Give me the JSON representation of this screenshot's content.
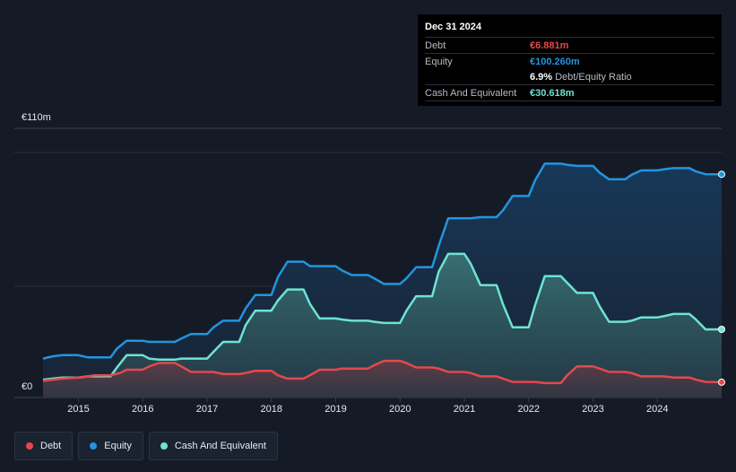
{
  "tooltip": {
    "date": "Dec 31 2024",
    "debt_label": "Debt",
    "debt_value": "€6.881m",
    "equity_label": "Equity",
    "equity_value": "€100.260m",
    "ratio_value": "6.9%",
    "ratio_label": "Debt/Equity Ratio",
    "cash_label": "Cash And Equivalent",
    "cash_value": "€30.618m"
  },
  "legend": {
    "debt": "Debt",
    "equity": "Equity",
    "cash": "Cash And Equivalent"
  },
  "colors": {
    "debt": "#e5484d",
    "equity": "#2394df",
    "cash": "#6de3d3",
    "background": "#151b26"
  },
  "chart_data": {
    "type": "area",
    "y_top_label": "€110m",
    "y_bottom_label": "€0",
    "ylim": [
      0,
      110
    ],
    "xlim": [
      2014.45,
      2025.0
    ],
    "x_tick_labels": [
      "2015",
      "2016",
      "2017",
      "2018",
      "2019",
      "2020",
      "2021",
      "2022",
      "2023",
      "2024"
    ],
    "x_ticks": [
      2015,
      2016,
      2017,
      2018,
      2019,
      2020,
      2021,
      2022,
      2023,
      2024
    ],
    "series": [
      {
        "name": "Debt",
        "key": "debt",
        "x": [
          2014.45,
          2014.6,
          2014.75,
          2015.0,
          2015.15,
          2015.25,
          2015.5,
          2015.65,
          2015.75,
          2016.0,
          2016.1,
          2016.25,
          2016.5,
          2016.6,
          2016.75,
          2017.0,
          2017.1,
          2017.25,
          2017.5,
          2017.6,
          2017.75,
          2018.0,
          2018.1,
          2018.25,
          2018.5,
          2018.6,
          2018.75,
          2019.0,
          2019.1,
          2019.25,
          2019.5,
          2019.6,
          2019.75,
          2020.0,
          2020.1,
          2020.25,
          2020.5,
          2020.6,
          2020.75,
          2021.0,
          2021.1,
          2021.25,
          2021.5,
          2021.6,
          2021.75,
          2022.0,
          2022.1,
          2022.25,
          2022.5,
          2022.6,
          2022.75,
          2023.0,
          2023.1,
          2023.25,
          2023.5,
          2023.6,
          2023.75,
          2024.0,
          2024.1,
          2024.25,
          2024.5,
          2024.6,
          2024.75,
          2025.0
        ],
        "values": [
          7.5,
          8.0,
          8.5,
          9.0,
          9.5,
          10.0,
          10.0,
          11.0,
          12.5,
          12.5,
          14.0,
          15.5,
          15.5,
          14.0,
          11.5,
          11.5,
          11.5,
          10.5,
          10.5,
          11.0,
          12.0,
          12.0,
          10.0,
          8.5,
          8.5,
          10.0,
          12.5,
          12.5,
          13.0,
          13.0,
          13.0,
          14.5,
          16.5,
          16.5,
          15.5,
          13.5,
          13.5,
          13.0,
          11.5,
          11.5,
          11.0,
          9.5,
          9.5,
          8.5,
          7.0,
          7.0,
          7.0,
          6.5,
          6.5,
          10.0,
          14.0,
          14.0,
          13.0,
          11.5,
          11.5,
          11.0,
          9.5,
          9.5,
          9.5,
          9.0,
          9.0,
          8.0,
          7.0,
          6.9
        ]
      },
      {
        "name": "Equity",
        "key": "equity",
        "x": [
          2014.45,
          2014.6,
          2014.75,
          2015.0,
          2015.15,
          2015.25,
          2015.5,
          2015.6,
          2015.75,
          2016.0,
          2016.1,
          2016.25,
          2016.5,
          2016.6,
          2016.75,
          2017.0,
          2017.1,
          2017.25,
          2017.5,
          2017.6,
          2017.75,
          2018.0,
          2018.1,
          2018.25,
          2018.5,
          2018.6,
          2018.75,
          2019.0,
          2019.1,
          2019.25,
          2019.5,
          2019.6,
          2019.75,
          2020.0,
          2020.1,
          2020.25,
          2020.5,
          2020.6,
          2020.75,
          2021.0,
          2021.1,
          2021.25,
          2021.5,
          2021.6,
          2021.75,
          2022.0,
          2022.1,
          2022.25,
          2022.5,
          2022.6,
          2022.75,
          2023.0,
          2023.1,
          2023.25,
          2023.5,
          2023.6,
          2023.75,
          2024.0,
          2024.1,
          2024.25,
          2024.5,
          2024.6,
          2024.75,
          2025.0
        ],
        "values": [
          17.5,
          18.5,
          19.0,
          19.0,
          18.0,
          18.0,
          18.0,
          22.0,
          25.5,
          25.5,
          25.0,
          25.0,
          25.0,
          26.5,
          28.5,
          28.5,
          31.5,
          34.5,
          34.5,
          40.0,
          46.0,
          46.0,
          54.0,
          61.0,
          61.0,
          59.0,
          59.0,
          59.0,
          57.0,
          55.0,
          55.0,
          53.5,
          51.0,
          51.0,
          53.5,
          58.5,
          58.5,
          68.0,
          80.5,
          80.5,
          80.5,
          81.0,
          81.0,
          84.0,
          90.5,
          90.5,
          97.5,
          105.0,
          105.0,
          104.5,
          104.0,
          104.0,
          101.0,
          98.0,
          98.0,
          100.0,
          102.0,
          102.0,
          102.5,
          103.0,
          103.0,
          101.5,
          100.3,
          100.26
        ]
      },
      {
        "name": "Cash And Equivalent",
        "key": "cash",
        "x": [
          2014.45,
          2014.6,
          2014.75,
          2015.0,
          2015.15,
          2015.25,
          2015.5,
          2015.6,
          2015.75,
          2016.0,
          2016.1,
          2016.25,
          2016.5,
          2016.6,
          2016.75,
          2017.0,
          2017.1,
          2017.25,
          2017.5,
          2017.6,
          2017.75,
          2018.0,
          2018.1,
          2018.25,
          2018.5,
          2018.6,
          2018.75,
          2019.0,
          2019.1,
          2019.25,
          2019.5,
          2019.6,
          2019.75,
          2020.0,
          2020.1,
          2020.25,
          2020.5,
          2020.6,
          2020.75,
          2021.0,
          2021.1,
          2021.25,
          2021.5,
          2021.6,
          2021.75,
          2022.0,
          2022.1,
          2022.25,
          2022.5,
          2022.6,
          2022.75,
          2023.0,
          2023.1,
          2023.25,
          2023.5,
          2023.6,
          2023.75,
          2024.0,
          2024.1,
          2024.25,
          2024.5,
          2024.6,
          2024.75,
          2025.0
        ],
        "values": [
          8.0,
          8.5,
          9.0,
          9.0,
          9.5,
          9.5,
          9.5,
          13.5,
          19.0,
          19.0,
          17.5,
          17.0,
          17.0,
          17.5,
          17.5,
          17.5,
          20.5,
          25.0,
          25.0,
          32.5,
          39.0,
          39.0,
          43.5,
          48.5,
          48.5,
          42.0,
          35.5,
          35.5,
          35.0,
          34.5,
          34.5,
          34.0,
          33.5,
          33.5,
          39.0,
          45.5,
          45.5,
          56.5,
          64.5,
          64.5,
          60.0,
          50.5,
          50.5,
          42.0,
          31.5,
          31.5,
          41.5,
          54.5,
          54.5,
          51.5,
          47.0,
          47.0,
          41.0,
          34.0,
          34.0,
          34.5,
          36.0,
          36.0,
          36.5,
          37.5,
          37.5,
          35.0,
          30.6,
          30.618
        ]
      }
    ]
  }
}
